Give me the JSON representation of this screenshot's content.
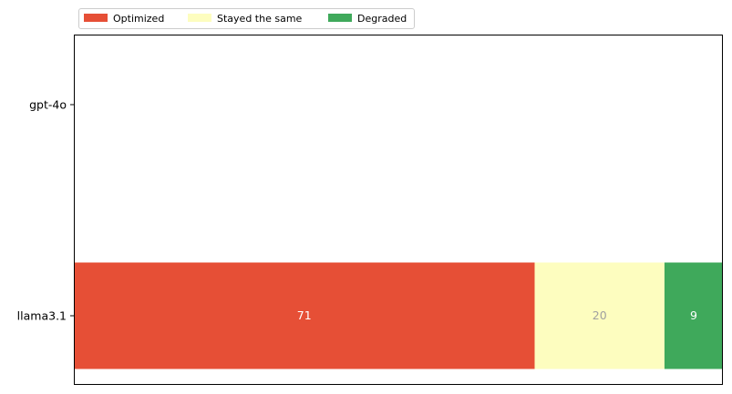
{
  "chart_data": {
    "type": "bar",
    "orientation": "horizontal",
    "stacked": true,
    "categories": [
      "gpt-4o",
      "llama3.1"
    ],
    "series": [
      {
        "name": "Optimized",
        "values": [
          0,
          71
        ],
        "color": "#e64f36"
      },
      {
        "name": "Stayed the same",
        "values": [
          0,
          20
        ],
        "color": "#fdfdbf"
      },
      {
        "name": "Degraded",
        "values": [
          0,
          9
        ],
        "color": "#3fa95b"
      }
    ],
    "label_colors": [
      "#ffffff",
      "#a0a0a0",
      "#ffffff"
    ],
    "xlim": [
      0,
      100
    ],
    "x_ticks_visible": false,
    "grid": false,
    "legend": {
      "placement": "top-left, outside above plot",
      "columns": 3
    }
  }
}
